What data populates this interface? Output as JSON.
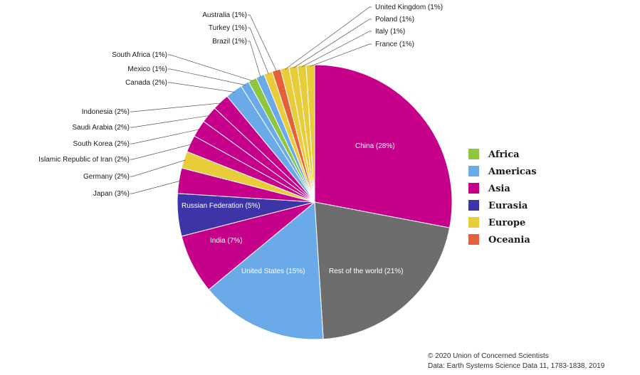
{
  "chart_data": {
    "type": "pie",
    "slices": [
      {
        "label": "China (28%)",
        "value": 28,
        "region": "Asia"
      },
      {
        "label": "Rest of the world (21%)",
        "value": 21,
        "region": "Other"
      },
      {
        "label": "United States (15%)",
        "value": 15,
        "region": "Americas"
      },
      {
        "label": "India (7%)",
        "value": 7,
        "region": "Asia"
      },
      {
        "label": "Russian Federation (5%)",
        "value": 5,
        "region": "Eurasia"
      },
      {
        "label": "Japan (3%)",
        "value": 3,
        "region": "Asia"
      },
      {
        "label": "Germany (2%)",
        "value": 2,
        "region": "Europe"
      },
      {
        "label": "Islamic Republic of Iran (2%)",
        "value": 2,
        "region": "Asia"
      },
      {
        "label": "South Korea (2%)",
        "value": 2,
        "region": "Asia"
      },
      {
        "label": "Saudi Arabia (2%)",
        "value": 2,
        "region": "Asia"
      },
      {
        "label": "Indonesia (2%)",
        "value": 2,
        "region": "Asia"
      },
      {
        "label": "Canada (2%)",
        "value": 2,
        "region": "Americas"
      },
      {
        "label": "Mexico (1%)",
        "value": 1,
        "region": "Americas"
      },
      {
        "label": "South Africa (1%)",
        "value": 1,
        "region": "Africa"
      },
      {
        "label": "Brazil (1%)",
        "value": 1,
        "region": "Americas"
      },
      {
        "label": "Turkey (1%)",
        "value": 1,
        "region": "Europe"
      },
      {
        "label": "Australia (1%)",
        "value": 1,
        "region": "Oceania"
      },
      {
        "label": "United Kingdom (1%)",
        "value": 1,
        "region": "Europe"
      },
      {
        "label": "Poland (1%)",
        "value": 1,
        "region": "Europe"
      },
      {
        "label": "Italy (1%)",
        "value": 1,
        "region": "Europe"
      },
      {
        "label": "France (1%)",
        "value": 1,
        "region": "Europe"
      }
    ],
    "legend": [
      {
        "name": "Africa",
        "color": "#8dc63f"
      },
      {
        "name": "Americas",
        "color": "#6aaae8"
      },
      {
        "name": "Asia",
        "color": "#c6008a"
      },
      {
        "name": "Eurasia",
        "color": "#3d34a8"
      },
      {
        "name": "Europe",
        "color": "#e9cc3a"
      },
      {
        "name": "Oceania",
        "color": "#e5603a"
      }
    ],
    "other_color": "#6d6d6d",
    "legend_position": "right"
  },
  "credit": {
    "line1": "© 2020 Union of Concerned Scientists",
    "line2": "Data: Earth Systems Science Data 11, 1783-1838, 2019"
  }
}
